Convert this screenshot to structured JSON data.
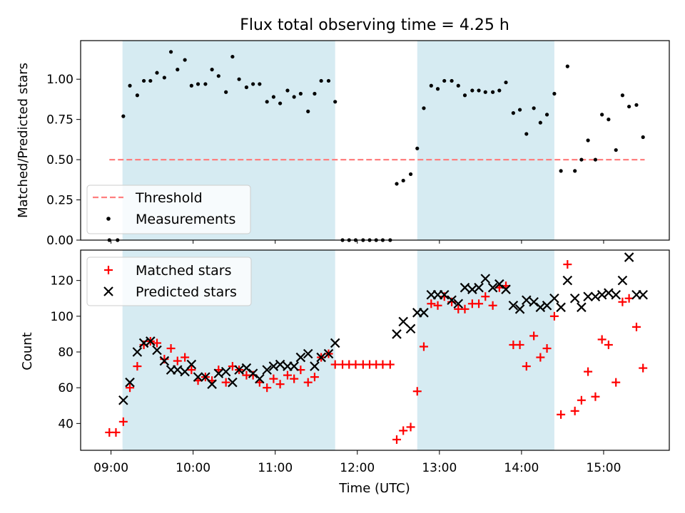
{
  "title": "Flux total observing time = 4.25 h",
  "colors": {
    "band": "#add8e6",
    "threshold": "#ff7f7f",
    "measurement": "#000000",
    "matched": "#ff0000",
    "predicted": "#000000"
  },
  "chart_data": [
    {
      "type": "scatter",
      "panel": "top",
      "title": "Flux total observing time = 4.25 h",
      "ylabel": "Matched/Predicted stars",
      "xlabel": "",
      "xlim": [
        8.63,
        15.8
      ],
      "ylim": [
        0,
        1.24
      ],
      "yticks": [
        0,
        0.25,
        0.5,
        0.75,
        1.0
      ],
      "ytick_labels": [
        "0.00",
        "0.25",
        "0.50",
        "0.75",
        "1.00"
      ],
      "shaded_intervals_hours": [
        [
          9.14,
          11.73
        ],
        [
          12.73,
          14.4
        ]
      ],
      "threshold": {
        "label": "Threshold",
        "y": 0.5,
        "x_range": [
          8.98,
          15.5
        ]
      },
      "legend": {
        "position": "bottom-left",
        "entries": [
          "Threshold",
          "Measurements"
        ]
      },
      "series": [
        {
          "name": "Measurements",
          "x": [
            8.98,
            9.08,
            9.15,
            9.23,
            9.32,
            9.4,
            9.48,
            9.56,
            9.65,
            9.73,
            9.81,
            9.9,
            9.98,
            10.06,
            10.15,
            10.23,
            10.31,
            10.4,
            10.48,
            10.56,
            10.65,
            10.73,
            10.81,
            10.9,
            10.98,
            11.06,
            11.15,
            11.23,
            11.31,
            11.4,
            11.48,
            11.56,
            11.65,
            11.73,
            11.82,
            11.9,
            11.98,
            12.07,
            12.15,
            12.23,
            12.31,
            12.4,
            12.48,
            12.56,
            12.65,
            12.73,
            12.81,
            12.9,
            12.98,
            13.06,
            13.15,
            13.23,
            13.31,
            13.4,
            13.48,
            13.56,
            13.65,
            13.73,
            13.81,
            13.9,
            13.98,
            14.06,
            14.15,
            14.23,
            14.31,
            14.4,
            14.48,
            14.56,
            14.65,
            14.73,
            14.81,
            14.9,
            14.98,
            15.06,
            15.15,
            15.23,
            15.31,
            15.4,
            15.48
          ],
          "y": [
            0.0,
            0.0,
            0.77,
            0.96,
            0.9,
            0.99,
            0.99,
            1.04,
            1.01,
            1.17,
            1.06,
            1.12,
            0.96,
            0.97,
            0.97,
            1.06,
            1.02,
            0.92,
            1.14,
            1.0,
            0.95,
            0.97,
            0.97,
            0.86,
            0.89,
            0.85,
            0.93,
            0.89,
            0.91,
            0.8,
            0.91,
            0.99,
            0.99,
            0.86,
            0.0,
            0.0,
            0.0,
            0.0,
            0.0,
            0.0,
            0.0,
            0.0,
            0.35,
            0.37,
            0.41,
            0.57,
            0.82,
            0.96,
            0.94,
            0.99,
            0.99,
            0.96,
            0.9,
            0.93,
            0.93,
            0.92,
            0.92,
            0.93,
            0.98,
            0.79,
            0.81,
            0.66,
            0.82,
            0.73,
            0.78,
            0.91,
            0.43,
            1.08,
            0.43,
            0.5,
            0.62,
            0.5,
            0.78,
            0.75,
            0.56,
            0.9,
            0.83,
            0.84,
            0.64
          ]
        }
      ]
    },
    {
      "type": "scatter",
      "panel": "bottom",
      "title": "",
      "xlabel": "Time (UTC)",
      "ylabel": "Count",
      "xlim": [
        8.63,
        15.8
      ],
      "ylim": [
        25,
        137
      ],
      "xticks": [
        9,
        10,
        11,
        12,
        13,
        14,
        15
      ],
      "xtick_labels": [
        "09:00",
        "10:00",
        "11:00",
        "12:00",
        "13:00",
        "14:00",
        "15:00"
      ],
      "yticks": [
        40,
        60,
        80,
        100,
        120
      ],
      "ytick_labels": [
        "40",
        "60",
        "80",
        "100",
        "120"
      ],
      "shaded_intervals_hours": [
        [
          9.14,
          11.73
        ],
        [
          12.73,
          14.4
        ]
      ],
      "legend": {
        "position": "top-left",
        "entries": [
          "Matched stars",
          "Predicted stars"
        ]
      },
      "series": [
        {
          "name": "Matched stars",
          "marker": "plus",
          "x": [
            8.98,
            9.06,
            9.15,
            9.23,
            9.32,
            9.4,
            9.48,
            9.56,
            9.65,
            9.73,
            9.81,
            9.9,
            9.98,
            10.06,
            10.15,
            10.23,
            10.31,
            10.4,
            10.48,
            10.56,
            10.65,
            10.73,
            10.81,
            10.9,
            10.98,
            11.06,
            11.15,
            11.23,
            11.31,
            11.4,
            11.48,
            11.56,
            11.65,
            11.73,
            11.82,
            11.9,
            11.98,
            12.07,
            12.15,
            12.23,
            12.31,
            12.4,
            12.48,
            12.56,
            12.65,
            12.73,
            12.81,
            12.9,
            12.98,
            13.06,
            13.15,
            13.23,
            13.31,
            13.4,
            13.48,
            13.56,
            13.65,
            13.73,
            13.81,
            13.9,
            13.98,
            14.06,
            14.15,
            14.23,
            14.31,
            14.4,
            14.48,
            14.56,
            14.65,
            14.73,
            14.81,
            14.9,
            14.98,
            15.06,
            15.15,
            15.23,
            15.31,
            15.4,
            15.48
          ],
          "y": [
            35,
            35,
            41,
            60,
            72,
            84,
            86,
            85,
            76,
            82,
            75,
            77,
            70,
            64,
            66,
            64,
            70,
            63,
            72,
            70,
            67,
            67,
            63,
            60,
            65,
            62,
            67,
            65,
            70,
            63,
            66,
            77,
            79,
            73,
            73,
            73,
            73,
            73,
            73,
            73,
            73,
            73,
            31,
            36,
            38,
            58,
            83,
            107,
            106,
            111,
            108,
            104,
            104,
            107,
            107,
            111,
            106,
            116,
            117,
            84,
            84,
            72,
            89,
            77,
            82,
            100,
            45,
            129,
            47,
            53,
            69,
            55,
            87,
            84,
            63,
            108,
            110,
            94,
            71
          ]
        },
        {
          "name": "Predicted stars",
          "marker": "x",
          "x": [
            9.15,
            9.23,
            9.32,
            9.4,
            9.48,
            9.56,
            9.65,
            9.73,
            9.81,
            9.9,
            9.98,
            10.06,
            10.15,
            10.23,
            10.31,
            10.4,
            10.48,
            10.56,
            10.65,
            10.73,
            10.81,
            10.9,
            10.98,
            11.06,
            11.15,
            11.23,
            11.31,
            11.4,
            11.48,
            11.56,
            11.65,
            11.73,
            12.48,
            12.56,
            12.65,
            12.73,
            12.81,
            12.9,
            12.98,
            13.06,
            13.15,
            13.23,
            13.31,
            13.4,
            13.48,
            13.56,
            13.65,
            13.73,
            13.81,
            13.9,
            13.98,
            14.06,
            14.15,
            14.23,
            14.31,
            14.4,
            14.48,
            14.56,
            14.65,
            14.73,
            14.81,
            14.9,
            14.98,
            15.06,
            15.15,
            15.23,
            15.31,
            15.4,
            15.48
          ],
          "y": [
            53,
            63,
            80,
            85,
            86,
            81,
            75,
            70,
            70,
            69,
            73,
            66,
            66,
            62,
            68,
            69,
            63,
            70,
            71,
            68,
            65,
            70,
            72,
            73,
            72,
            72,
            77,
            79,
            72,
            77,
            79,
            85,
            90,
            97,
            93,
            102,
            102,
            112,
            112,
            112,
            109,
            107,
            116,
            115,
            116,
            121,
            116,
            118,
            115,
            106,
            104,
            109,
            108,
            105,
            106,
            110,
            105,
            120,
            110,
            105,
            111,
            111,
            112,
            113,
            112,
            120,
            133,
            112,
            112
          ]
        }
      ]
    }
  ]
}
